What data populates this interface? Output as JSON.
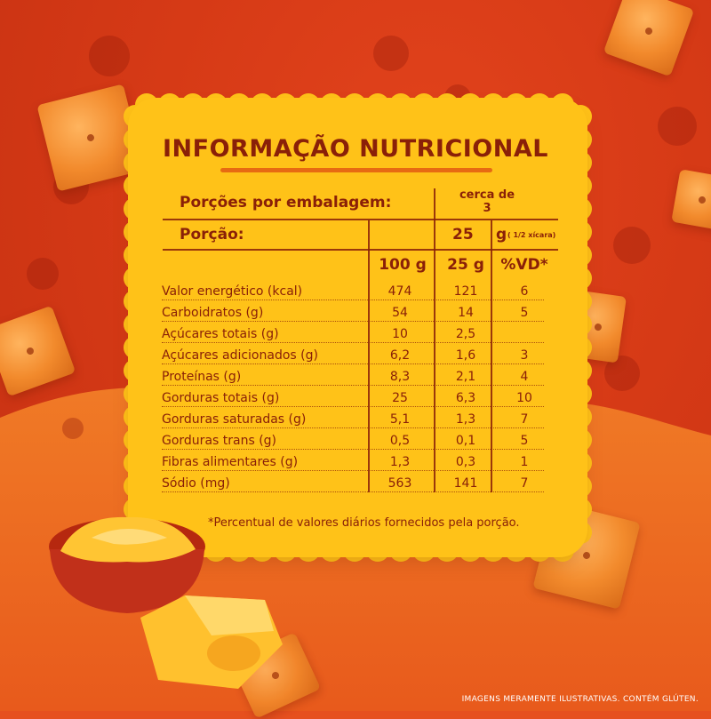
{
  "title": "INFORMAÇÃO NUTRICIONAL",
  "servings_label": "Porções por embalagem:",
  "servings_value": "cerca de 3",
  "servings_value_line1": "cerca de",
  "servings_value_line2": "3",
  "portion_label": "Porção:",
  "portion_value": "25",
  "portion_unit": "g",
  "portion_note": "( 1/2 xícara)",
  "columns": [
    "100 g",
    "25 g",
    "%VD*"
  ],
  "rows": [
    {
      "label": "Valor energético (kcal)",
      "v100": "474",
      "v25": "121",
      "vd": "6"
    },
    {
      "label": "Carboidratos (g)",
      "v100": "54",
      "v25": "14",
      "vd": "5"
    },
    {
      "label": "Açúcares totais (g)",
      "v100": "10",
      "v25": "2,5",
      "vd": ""
    },
    {
      "label": "Açúcares adicionados (g)",
      "v100": "6,2",
      "v25": "1,6",
      "vd": "3"
    },
    {
      "label": "Proteínas (g)",
      "v100": "8,3",
      "v25": "2,1",
      "vd": "4"
    },
    {
      "label": "Gorduras totais (g)",
      "v100": "25",
      "v25": "6,3",
      "vd": "10"
    },
    {
      "label": "Gorduras saturadas (g)",
      "v100": "5,1",
      "v25": "1,3",
      "vd": "7"
    },
    {
      "label": "Gorduras trans (g)",
      "v100": "0,5",
      "v25": "0,1",
      "vd": "5"
    },
    {
      "label": "Fibras alimentares (g)",
      "v100": "1,3",
      "v25": "0,3",
      "vd": "1"
    },
    {
      "label": "Sódio (mg)",
      "v100": "563",
      "v25": "141",
      "vd": "7"
    }
  ],
  "footnote": "*Percentual de valores diários fornecidos pela porção.",
  "disclaimer": "IMAGENS MERAMENTE ILUSTRATIVAS. CONTÉM GLÚTEN.",
  "colors": {
    "card": "#ffc218",
    "text": "#8a2008",
    "accent": "#e76a12",
    "background": "#e6501e"
  }
}
